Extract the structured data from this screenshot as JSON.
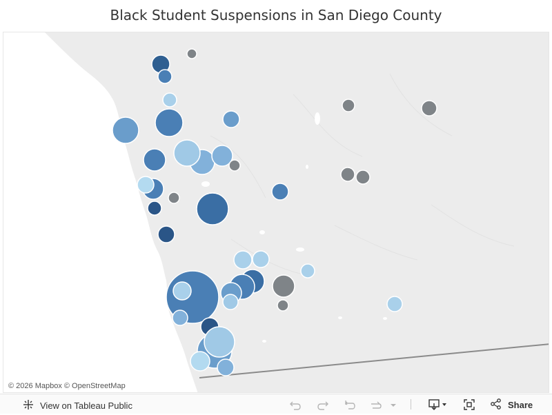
{
  "title": "Black Student Suspensions in San Diego County",
  "attribution": "© 2026 Mapbox  © OpenStreetMap",
  "toolbar": {
    "tableau_label": "View on Tableau Public",
    "share_label": "Share"
  },
  "colors": {
    "dark_blue": "#2f5f91",
    "mid_blue": "#4a7fb5",
    "light_blue": "#82b1da",
    "pale_blue": "#a9d0ea",
    "gray": "#7f8488",
    "land": "#ededed",
    "ocean": "#ffffff"
  },
  "icons": [
    "tableau-icon",
    "undo-icon",
    "redo-icon",
    "revert-icon",
    "refresh-icon",
    "download-icon",
    "fullscreen-icon",
    "share-icon"
  ]
}
